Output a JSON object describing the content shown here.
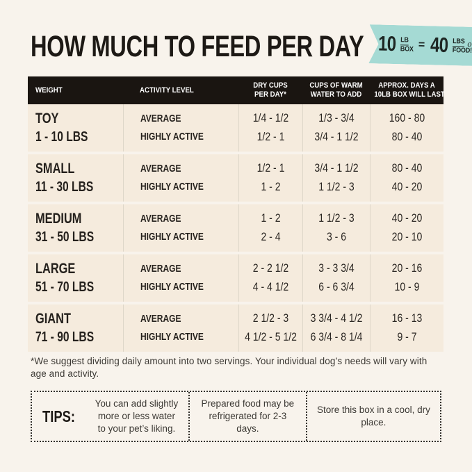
{
  "header": {
    "title": "HOW MUCH TO FEED PER DAY",
    "badge": {
      "color": "#a5dad4",
      "left_qty": "10",
      "left_unit_top": "LB",
      "left_unit_bottom": "BOX",
      "equals": "=",
      "right_qty": "40",
      "right_unit_top": "LBS",
      "right_unit_script": "of",
      "right_unit_bottom": "FOOD!"
    }
  },
  "table": {
    "header": {
      "col1": "WEIGHT",
      "col2": "ACTIVITY LEVEL",
      "col3_line1": "DRY CUPS",
      "col3_line2": "PER DAY*",
      "col4_line1": "CUPS OF WARM",
      "col4_line2": "WATER TO ADD",
      "col5_line1": "APPROX. DAYS A",
      "col5_line2": "10LB BOX WILL LAST"
    },
    "rows": [
      {
        "size": "TOY",
        "range": "1 - 10 LBS",
        "activity1": "AVERAGE",
        "activity2": "HIGHLY ACTIVE",
        "dry1": "1/4 - 1/2",
        "dry2": "1/2 - 1",
        "water1": "1/3 - 3/4",
        "water2": "3/4 - 1 1/2",
        "days1": "160 - 80",
        "days2": "80 - 40"
      },
      {
        "size": "SMALL",
        "range": "11 - 30 LBS",
        "activity1": "AVERAGE",
        "activity2": "HIGHLY ACTIVE",
        "dry1": "1/2 - 1",
        "dry2": "1 - 2",
        "water1": "3/4 - 1 1/2",
        "water2": "1 1/2 - 3",
        "days1": "80 - 40",
        "days2": "40 - 20"
      },
      {
        "size": "MEDIUM",
        "range": "31 - 50 LBS",
        "activity1": "AVERAGE",
        "activity2": "HIGHLY ACTIVE",
        "dry1": "1 - 2",
        "dry2": "2 - 4",
        "water1": "1 1/2 - 3",
        "water2": "3 - 6",
        "days1": "40 - 20",
        "days2": "20 - 10"
      },
      {
        "size": "LARGE",
        "range": "51 - 70 LBS",
        "activity1": "AVERAGE",
        "activity2": "HIGHLY ACTIVE",
        "dry1": "2 - 2 1/2",
        "dry2": "4 - 4 1/2",
        "water1": "3 - 3 3/4",
        "water2": "6 - 6 3/4",
        "days1": "20 - 16",
        "days2": "10 - 9"
      },
      {
        "size": "GIANT",
        "range": "71 - 90 LBS",
        "activity1": "AVERAGE",
        "activity2": "HIGHLY ACTIVE",
        "dry1": "2 1/2 - 3",
        "dry2": "4 1/2 - 5 1/2",
        "water1": "3 3/4 - 4 1/2",
        "water2": "6 3/4 - 8 1/4",
        "days1": "16 - 13",
        "days2": "9 - 7"
      }
    ]
  },
  "footnote": "*We suggest dividing daily amount into two servings. Your individual dog’s needs will vary with age and activity.",
  "tips": {
    "label": "TIPS:",
    "items": [
      "You can add slightly more or less water to your pet’s liking.",
      "Prepared food may be refrigerated for 2-3 days.",
      "Store this box in a cool, dry place."
    ]
  }
}
